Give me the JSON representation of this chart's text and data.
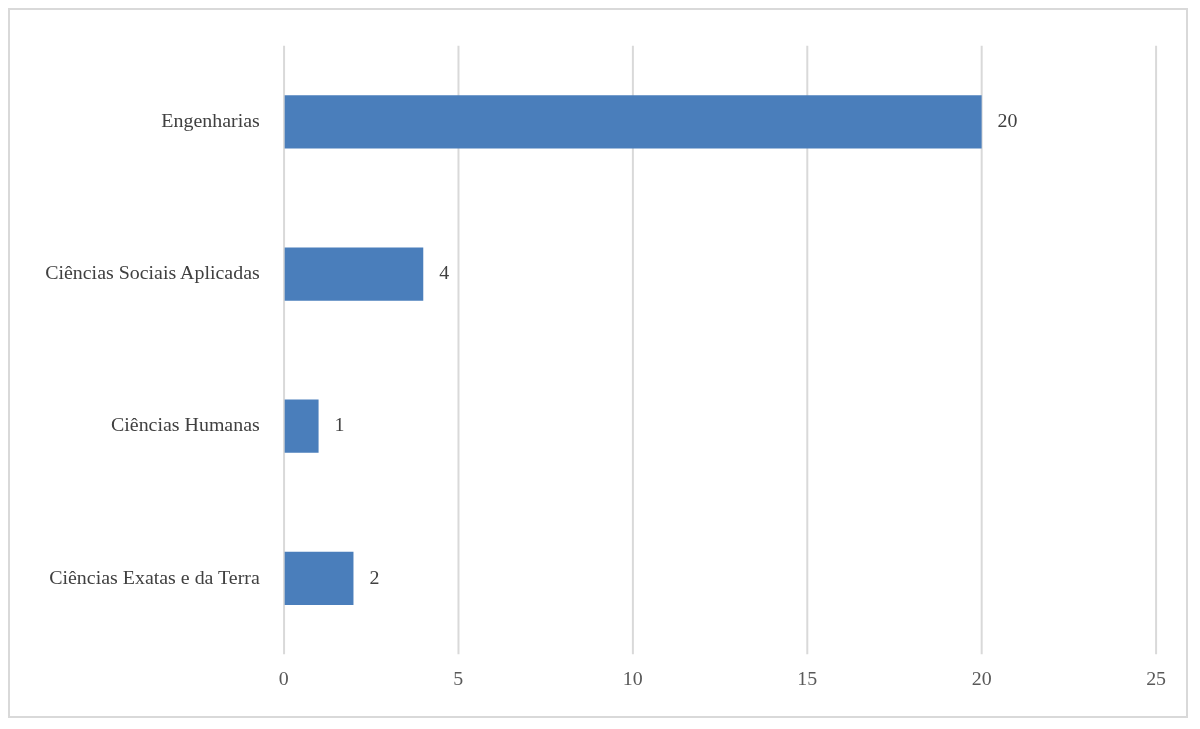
{
  "chart_data": {
    "type": "bar",
    "orientation": "horizontal",
    "categories": [
      "Engenharias",
      "Ciências Sociais Aplicadas",
      "Ciências Humanas",
      "Ciências Exatas e da Terra"
    ],
    "values": [
      20,
      4,
      1,
      2
    ],
    "color": "#4a7ebb",
    "xlim": [
      0,
      25
    ],
    "xticks": [
      0,
      5,
      10,
      15,
      20,
      25
    ],
    "grid": "x",
    "data_labels": true,
    "legend": false
  }
}
